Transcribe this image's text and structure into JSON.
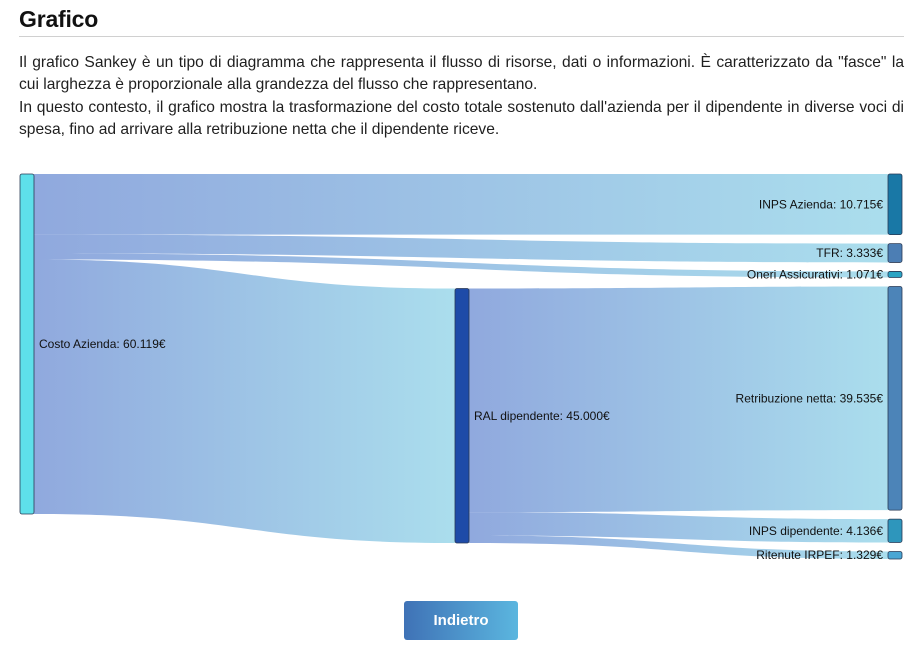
{
  "page": {
    "title": "Grafico",
    "paragraphs": [
      "Il grafico Sankey è un tipo di diagramma che rappresenta il flusso di risorse, dati o informazioni. È caratterizzato da \"fasce\" la cui larghezza è proporzionale alla grandezza del flusso che rappresentano.",
      "In questo contesto, il grafico mostra la trasformazione del costo totale sostenuto dall'azienda per il dipendente in diverse voci di spesa, fino ad arrivare alla retribuzione netta che il dipendente riceve."
    ],
    "back_button_label": "Indietro"
  },
  "colors": {
    "flow_start": "#8aa4dc",
    "flow_end": "#a6dcec",
    "node_source": "#5ee0ea",
    "node_ral": "#1e4ba8",
    "node_inps_azienda": "#1978a6",
    "node_tfr": "#4c7eb4",
    "node_oneri": "#2aa4c4",
    "node_retribuzione": "#4c84b8",
    "node_inps_dip": "#2e96bc",
    "node_irpef": "#4aa6d4",
    "button_start": "#3f72b6",
    "button_end": "#5bb6df"
  },
  "chart_data": {
    "type": "sankey",
    "nodes": [
      {
        "id": "costo",
        "label": "Costo Azienda: 60.119€",
        "value": 60119,
        "column": 0,
        "color_key": "node_source"
      },
      {
        "id": "inps_az",
        "label": "INPS Azienda: 10.715€",
        "value": 10715,
        "column": 2,
        "color_key": "node_inps_azienda"
      },
      {
        "id": "tfr",
        "label": "TFR: 3.333€",
        "value": 3333,
        "column": 2,
        "color_key": "node_tfr"
      },
      {
        "id": "oneri",
        "label": "Oneri Assicurativi: 1.071€",
        "value": 1071,
        "column": 2,
        "color_key": "node_oneri"
      },
      {
        "id": "ral",
        "label": "RAL dipendente: 45.000€",
        "value": 45000,
        "column": 1,
        "color_key": "node_ral"
      },
      {
        "id": "netta",
        "label": "Retribuzione netta: 39.535€",
        "value": 39535,
        "column": 2,
        "color_key": "node_retribuzione"
      },
      {
        "id": "inps_dip",
        "label": "INPS dipendente: 4.136€",
        "value": 4136,
        "column": 2,
        "color_key": "node_inps_dip"
      },
      {
        "id": "irpef",
        "label": "Ritenute IRPEF: 1.329€",
        "value": 1329,
        "column": 2,
        "color_key": "node_irpef"
      }
    ],
    "links": [
      {
        "source": "costo",
        "target": "inps_az",
        "value": 10715
      },
      {
        "source": "costo",
        "target": "tfr",
        "value": 3333
      },
      {
        "source": "costo",
        "target": "oneri",
        "value": 1071
      },
      {
        "source": "costo",
        "target": "ral",
        "value": 45000
      },
      {
        "source": "ral",
        "target": "netta",
        "value": 39535
      },
      {
        "source": "ral",
        "target": "inps_dip",
        "value": 4136
      },
      {
        "source": "ral",
        "target": "irpef",
        "value": 1329
      }
    ]
  }
}
